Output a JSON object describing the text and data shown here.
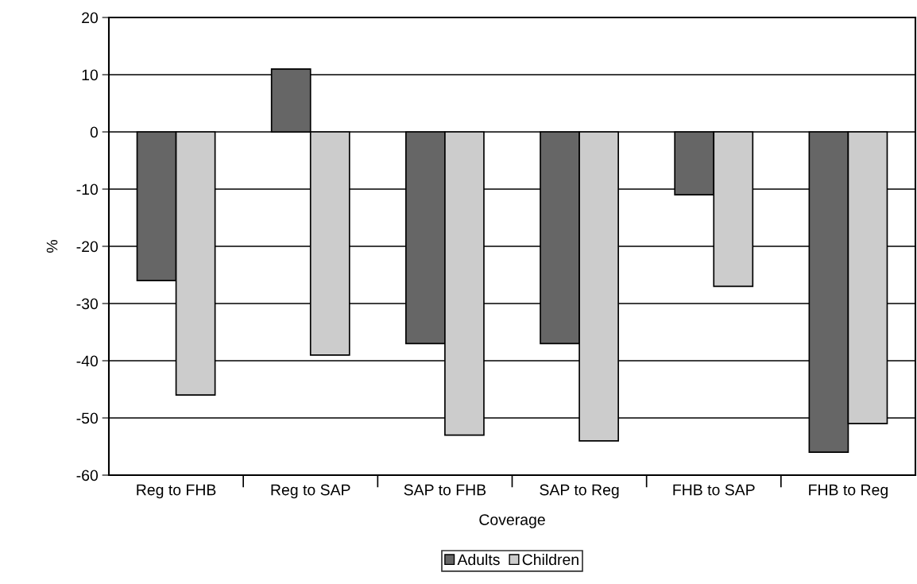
{
  "chart_data": {
    "type": "bar",
    "xlabel": "Coverage",
    "ylabel": "%",
    "categories": [
      "Reg to FHB",
      "Reg to SAP",
      "SAP to FHB",
      "SAP to Reg",
      "FHB to SAP",
      "FHB to Reg"
    ],
    "series": [
      {
        "name": "Adults",
        "color": "#666666",
        "values": [
          -26,
          11,
          -37,
          -37,
          -11,
          -56
        ]
      },
      {
        "name": "Children",
        "color": "#cccccc",
        "values": [
          -46,
          -39,
          -53,
          -54,
          -27,
          -51
        ]
      }
    ],
    "ylim": [
      -60,
      20
    ],
    "yticks": [
      -60,
      -50,
      -40,
      -30,
      -20,
      -10,
      0,
      10,
      20
    ],
    "grid": "y",
    "legend": "bottom"
  }
}
